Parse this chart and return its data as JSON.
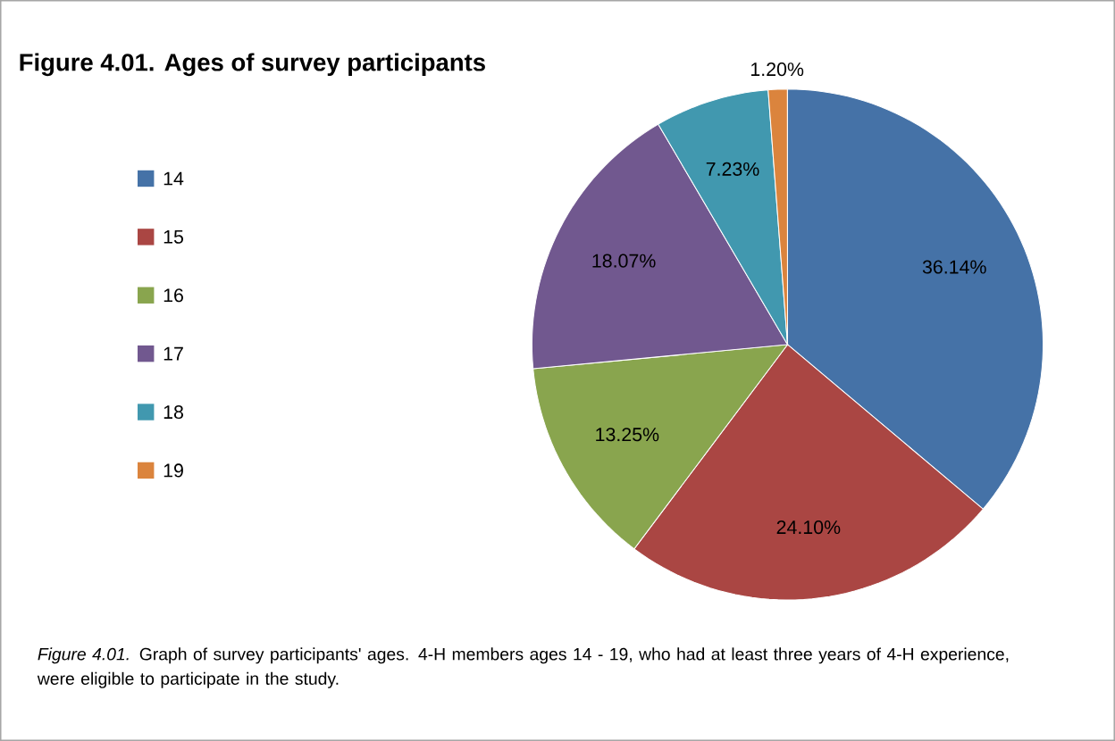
{
  "chart_data": {
    "type": "pie",
    "title": "Figure 4.01.  Ages of survey participants",
    "categories": [
      "14",
      "15",
      "16",
      "17",
      "18",
      "19"
    ],
    "values": [
      36.14,
      24.1,
      13.25,
      18.07,
      7.23,
      1.2
    ],
    "value_labels": [
      "36.14%",
      "24.10%",
      "13.25%",
      "18.07%",
      "7.23%",
      "1.20%"
    ],
    "colors": [
      "#4572a7",
      "#aa4643",
      "#89a54e",
      "#71588f",
      "#4198af",
      "#db843d"
    ],
    "legend": "left",
    "annotations": [
      "*Figure 4.01.*  Graph of survey participants' ages.  4-H members ages 14 - 19, who had at least three years of 4-H experience, were eligible to participate in the study."
    ]
  }
}
